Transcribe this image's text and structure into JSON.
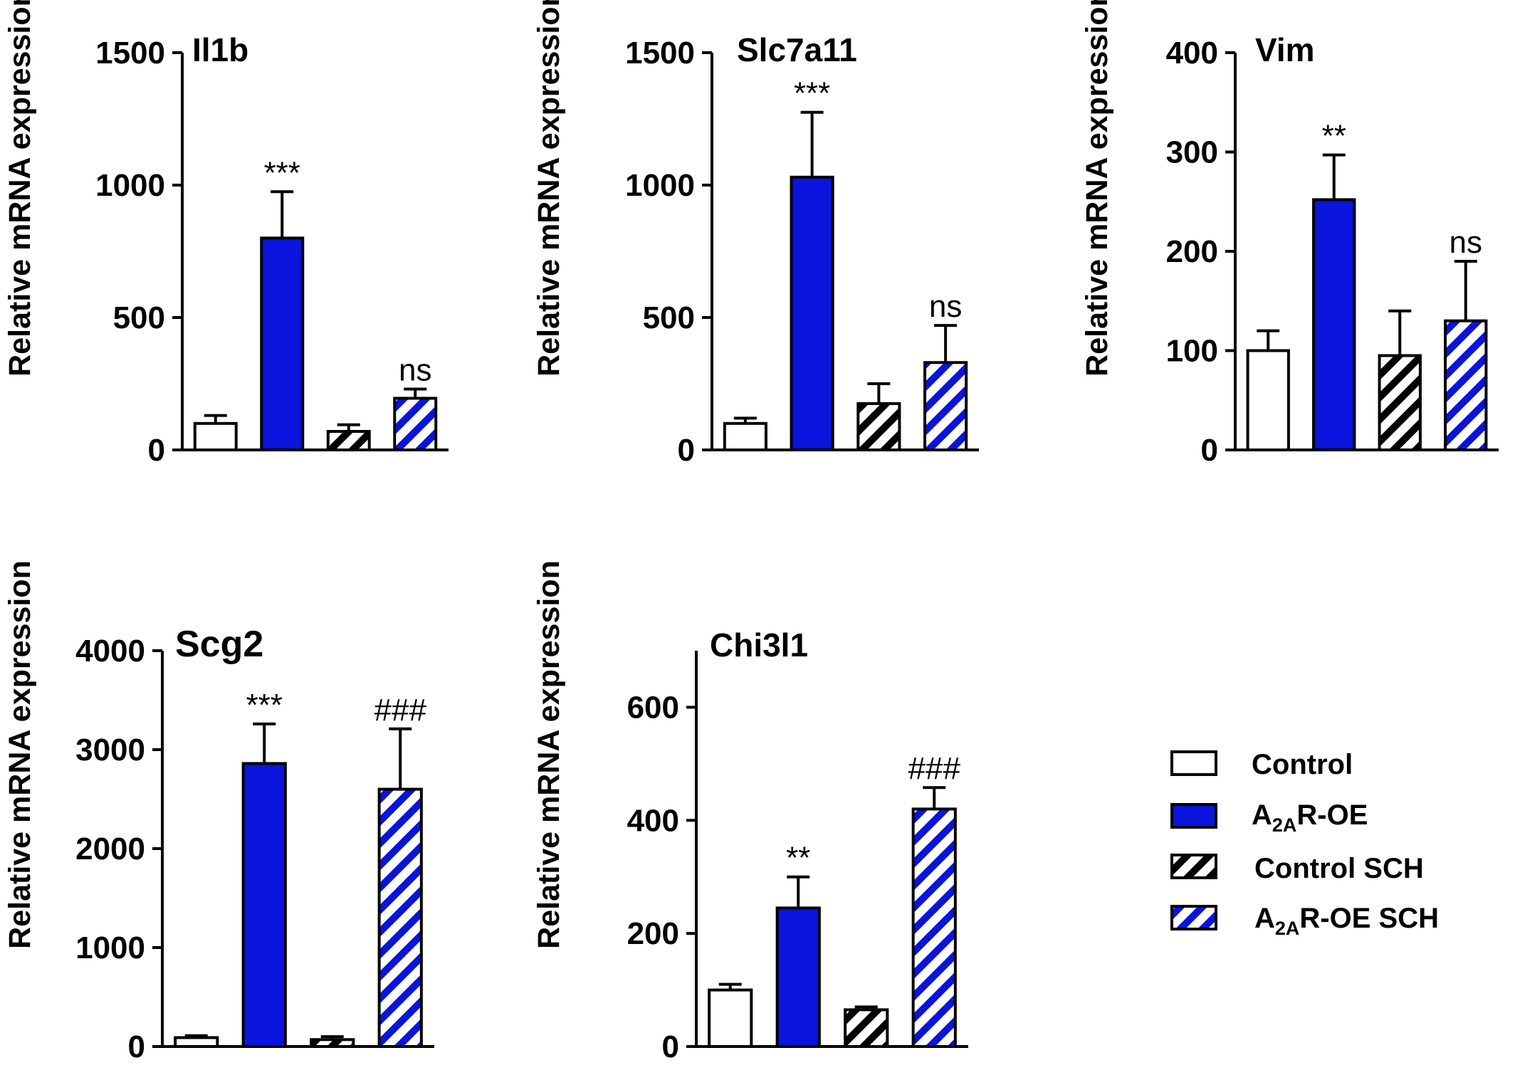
{
  "colors": {
    "control": "#ffffff",
    "a2ar_oe": "#0a14dc",
    "outline": "#000000",
    "hatch_dark": "#000000",
    "hatch_blue": "#0a14dc"
  },
  "legend": {
    "items": [
      {
        "key": "control",
        "label": "Control",
        "label_main": "Control",
        "label_sub": "",
        "label_rest": ""
      },
      {
        "key": "a2ar_oe",
        "label": "A2AR-OE",
        "label_main": "A",
        "label_sub": "2A",
        "label_rest": "R-OE"
      },
      {
        "key": "control_sch",
        "label": "Control SCH",
        "label_main": "Control SCH",
        "label_sub": "",
        "label_rest": ""
      },
      {
        "key": "a2ar_oe_sch",
        "label": "A2AR-OE SCH",
        "label_main": "A",
        "label_sub": "2A",
        "label_rest": "R-OE SCH"
      }
    ]
  },
  "chart_data": [
    {
      "type": "bar",
      "title": "Il1b",
      "ylabel": "Relative mRNA expression",
      "categories": [
        "Control",
        "A2AR-OE",
        "Control SCH",
        "A2AR-OE SCH"
      ],
      "values": [
        100,
        800,
        70,
        195
      ],
      "errors": [
        30,
        175,
        25,
        35
      ],
      "annotations": [
        "",
        "***",
        "",
        "ns"
      ],
      "ylim": [
        0,
        1500
      ],
      "yticks": [
        0,
        500,
        1000,
        1500
      ]
    },
    {
      "type": "bar",
      "title": "Slc7a11",
      "ylabel": "Relative mRNA expression",
      "categories": [
        "Control",
        "A2AR-OE",
        "Control SCH",
        "A2AR-OE SCH"
      ],
      "values": [
        100,
        1030,
        175,
        330
      ],
      "errors": [
        20,
        245,
        75,
        140
      ],
      "annotations": [
        "",
        "***",
        "",
        "ns"
      ],
      "ylim": [
        0,
        1500
      ],
      "yticks": [
        0,
        500,
        1000,
        1500
      ]
    },
    {
      "type": "bar",
      "title": "Vim",
      "ylabel": "Relative mRNA expression",
      "categories": [
        "Control",
        "A2AR-OE",
        "Control SCH",
        "A2AR-OE SCH"
      ],
      "values": [
        100,
        252,
        95,
        130
      ],
      "errors": [
        20,
        45,
        45,
        60
      ],
      "annotations": [
        "",
        "**",
        "",
        "ns"
      ],
      "ylim": [
        0,
        400
      ],
      "yticks": [
        0,
        100,
        200,
        300,
        400
      ]
    },
    {
      "type": "bar",
      "title": "Scg2",
      "ylabel": "Relative mRNA expression",
      "categories": [
        "Control",
        "A2AR-OE",
        "Control SCH",
        "A2AR-OE SCH"
      ],
      "values": [
        90,
        2860,
        70,
        2600
      ],
      "errors": [
        20,
        400,
        30,
        610
      ],
      "annotations": [
        "",
        "***",
        "",
        "###"
      ],
      "ylim": [
        0,
        4000
      ],
      "yticks": [
        0,
        1000,
        2000,
        3000,
        4000
      ]
    },
    {
      "type": "bar",
      "title": "Chi3l1",
      "ylabel": "Relative mRNA expression",
      "categories": [
        "Control",
        "A2AR-OE",
        "Control SCH",
        "A2AR-OE SCH"
      ],
      "values": [
        100,
        245,
        65,
        420
      ],
      "errors": [
        10,
        55,
        5,
        38
      ],
      "annotations": [
        "",
        "**",
        "",
        "###"
      ],
      "ylim": [
        0,
        700
      ],
      "yticks": [
        0,
        200,
        400,
        600
      ]
    }
  ]
}
